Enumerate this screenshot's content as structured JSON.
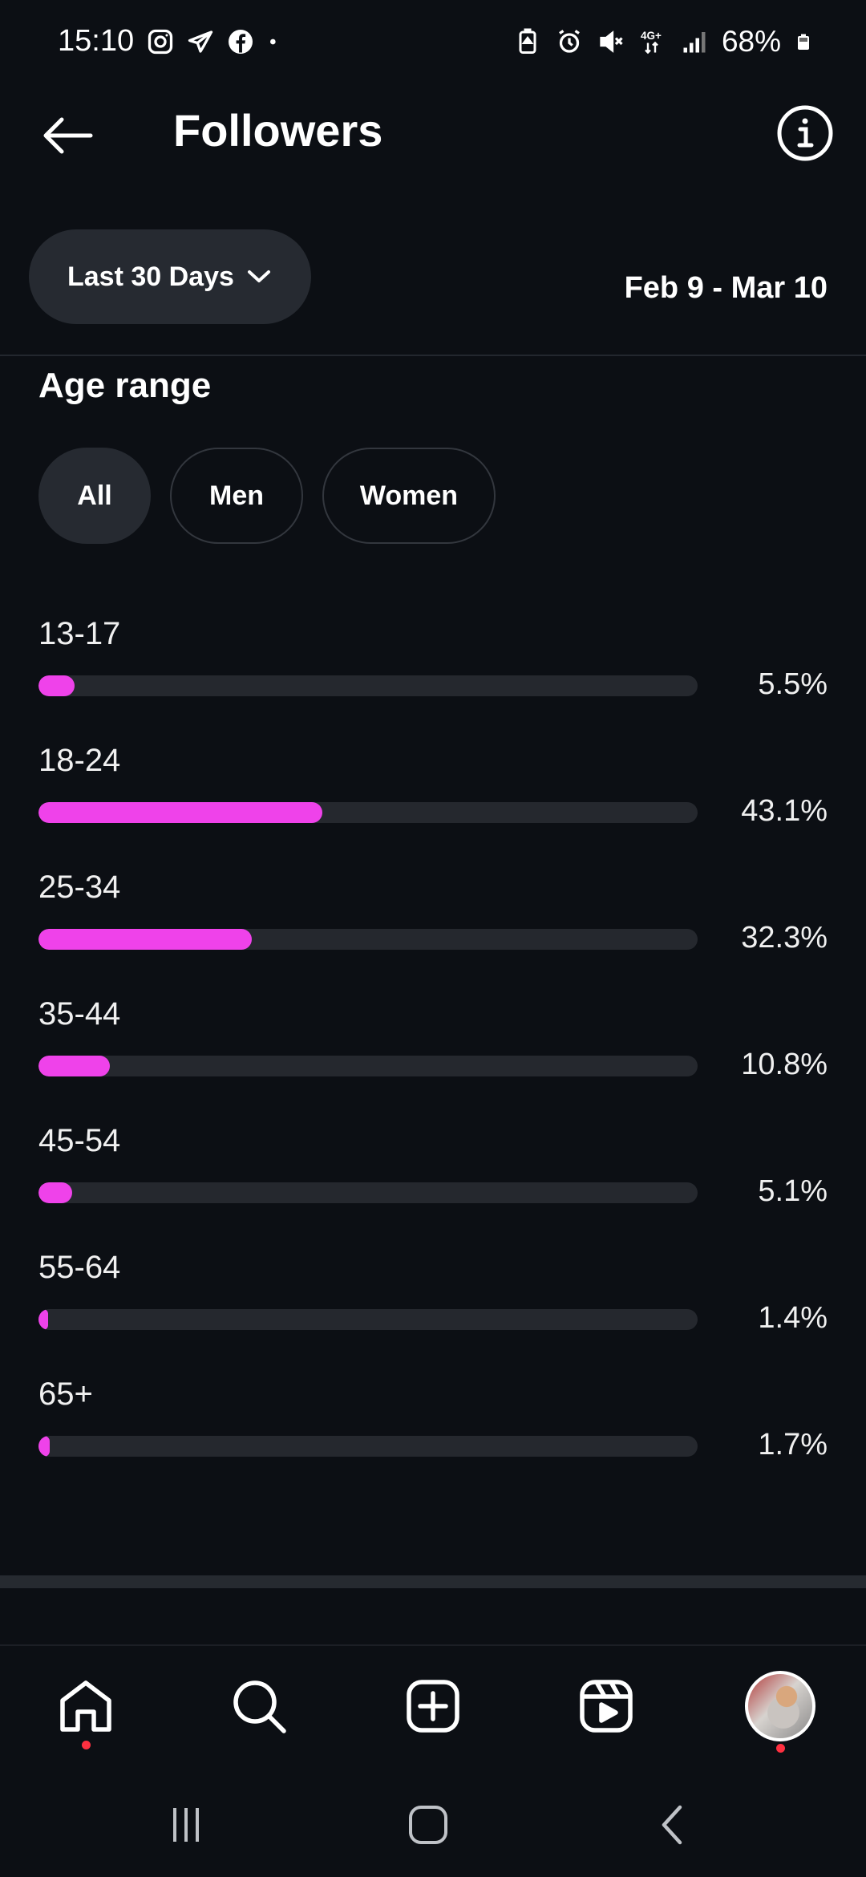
{
  "status_bar": {
    "time": "15:10",
    "left_icons": [
      "instagram-icon",
      "telegram-icon",
      "facebook-icon",
      "dot-icon"
    ],
    "right_icons": [
      "battery-saver-icon",
      "alarm-icon",
      "mute-icon",
      "network-4g-icon",
      "signal-icon",
      "battery-icon"
    ],
    "battery": "68%"
  },
  "header": {
    "title": "Followers",
    "back_icon": "arrow-left-icon",
    "info_icon": "info-icon"
  },
  "filter": {
    "range_label": "Last 30 Days",
    "date_range": "Feb 9 - Mar 10"
  },
  "section": {
    "title": "Age range",
    "chips": [
      "All",
      "Men",
      "Women"
    ],
    "selected_chip": "All"
  },
  "chart_data": {
    "type": "bar",
    "orientation": "horizontal",
    "categories": [
      "13-17",
      "18-24",
      "25-34",
      "35-44",
      "45-54",
      "55-64",
      "65+"
    ],
    "values": [
      5.5,
      43.1,
      32.3,
      10.8,
      5.1,
      1.4,
      1.7
    ],
    "value_labels": [
      "5.5%",
      "43.1%",
      "32.3%",
      "10.8%",
      "5.1%",
      "1.4%",
      "1.7%"
    ],
    "xlim": [
      0,
      100
    ],
    "bar_color": "#ef42ea",
    "track_color": "#25282e"
  },
  "bottom_nav": {
    "items": [
      "home-icon",
      "search-icon",
      "create-icon",
      "reels-icon",
      "profile-avatar"
    ]
  },
  "system_nav": {
    "items": [
      "recent-apps-icon",
      "home-button-icon",
      "back-nav-icon"
    ]
  },
  "colors": {
    "background": "#0c0f14",
    "accent": "#ef42ea",
    "notification": "#ff3040"
  }
}
